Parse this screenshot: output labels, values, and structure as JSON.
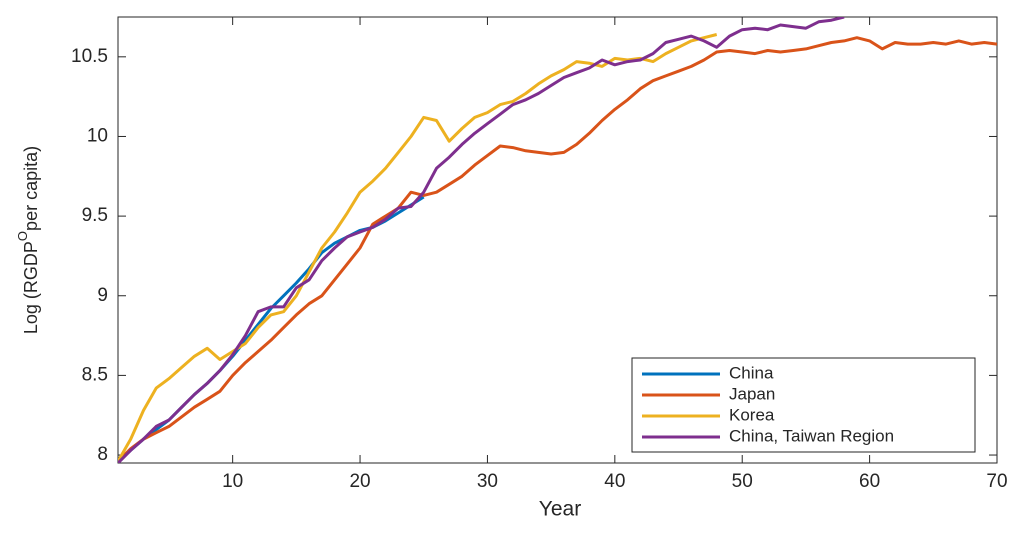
{
  "chart_data": {
    "type": "line",
    "xlabel": "Year",
    "ylabel": [
      "Log (RGDP",
      "O",
      "per capita)"
    ],
    "x": [
      1,
      2,
      3,
      4,
      5,
      6,
      7,
      8,
      9,
      10,
      11,
      12,
      13,
      14,
      15,
      16,
      17,
      18,
      19,
      20,
      21,
      22,
      23,
      24,
      25,
      26,
      27,
      28,
      29,
      30,
      31,
      32,
      33,
      34,
      35,
      36,
      37,
      38,
      39,
      40,
      41,
      42,
      43,
      44,
      45,
      46,
      47,
      48,
      49,
      50,
      51,
      52,
      53,
      54,
      55,
      56,
      57,
      58,
      59,
      60,
      61,
      62,
      63,
      64,
      65,
      66,
      67,
      68,
      69,
      70
    ],
    "xlim": [
      1,
      70
    ],
    "xticks": [
      10,
      20,
      30,
      40,
      50,
      60,
      70
    ],
    "ylim": [
      7.95,
      10.75
    ],
    "yticks": [
      8,
      8.5,
      9,
      9.5,
      10,
      10.5
    ],
    "legend": "lower right",
    "series": [
      {
        "name": "China",
        "color": "#0072bd",
        "values": [
          7.96,
          8.03,
          8.1,
          8.16,
          8.22,
          8.3,
          8.38,
          8.45,
          8.53,
          8.62,
          8.72,
          8.82,
          8.92,
          9.0,
          9.08,
          9.17,
          9.27,
          9.33,
          9.37,
          9.41,
          9.43,
          9.47,
          9.52,
          9.57,
          9.62,
          null,
          null,
          null,
          null,
          null,
          null,
          null,
          null,
          null,
          null,
          null,
          null,
          null,
          null,
          null,
          null,
          null,
          null,
          null,
          null,
          null,
          null,
          null,
          null,
          null,
          null,
          null,
          null,
          null,
          null,
          null,
          null,
          null,
          null,
          null,
          null,
          null,
          null,
          null,
          null,
          null,
          null,
          null,
          null,
          null
        ]
      },
      {
        "name": "Japan",
        "color": "#d95319",
        "values": [
          7.96,
          8.04,
          8.1,
          8.14,
          8.18,
          8.24,
          8.3,
          8.35,
          8.4,
          8.5,
          8.58,
          8.65,
          8.72,
          8.8,
          8.88,
          8.95,
          9.0,
          9.1,
          9.2,
          9.3,
          9.45,
          9.5,
          9.55,
          9.65,
          9.63,
          9.65,
          9.7,
          9.75,
          9.82,
          9.88,
          9.94,
          9.93,
          9.91,
          9.9,
          9.89,
          9.9,
          9.95,
          10.02,
          10.1,
          10.17,
          10.23,
          10.3,
          10.35,
          10.38,
          10.41,
          10.44,
          10.48,
          10.53,
          10.54,
          10.53,
          10.52,
          10.54,
          10.53,
          10.54,
          10.55,
          10.57,
          10.59,
          10.6,
          10.62,
          10.6,
          10.55,
          10.59,
          10.58,
          10.58,
          10.59,
          10.58,
          10.6,
          10.58,
          10.59,
          10.58
        ]
      },
      {
        "name": "Korea",
        "color": "#edb120",
        "values": [
          7.96,
          8.1,
          8.28,
          8.42,
          8.48,
          8.55,
          8.62,
          8.67,
          8.6,
          8.65,
          8.7,
          8.8,
          8.88,
          8.9,
          9.0,
          9.15,
          9.3,
          9.4,
          9.52,
          9.65,
          9.72,
          9.8,
          9.9,
          10.0,
          10.12,
          10.1,
          9.97,
          10.05,
          10.12,
          10.15,
          10.2,
          10.22,
          10.27,
          10.33,
          10.38,
          10.42,
          10.47,
          10.46,
          10.44,
          10.49,
          10.48,
          10.49,
          10.47,
          10.52,
          10.56,
          10.6,
          10.62,
          10.64,
          null,
          null,
          null,
          null,
          null,
          null,
          null,
          null,
          null,
          null,
          null,
          null,
          null,
          null,
          null,
          null,
          null,
          null,
          null,
          null,
          null,
          null
        ]
      },
      {
        "name": "China, Taiwan Region",
        "color": "#7e2f8e",
        "values": [
          7.95,
          8.03,
          8.1,
          8.18,
          8.22,
          8.3,
          8.38,
          8.45,
          8.53,
          8.63,
          8.75,
          8.9,
          8.93,
          8.93,
          9.05,
          9.1,
          9.22,
          9.3,
          9.37,
          9.4,
          9.43,
          9.48,
          9.55,
          9.56,
          9.65,
          9.8,
          9.87,
          9.95,
          10.02,
          10.08,
          10.14,
          10.2,
          10.23,
          10.27,
          10.32,
          10.37,
          10.4,
          10.43,
          10.48,
          10.45,
          10.47,
          10.48,
          10.52,
          10.59,
          10.61,
          10.63,
          10.6,
          10.56,
          10.63,
          10.67,
          10.68,
          10.67,
          10.7,
          10.69,
          10.68,
          10.72,
          10.73,
          10.75,
          null,
          null,
          null,
          null,
          null,
          null,
          null,
          null,
          null,
          null,
          null,
          null
        ]
      }
    ]
  }
}
